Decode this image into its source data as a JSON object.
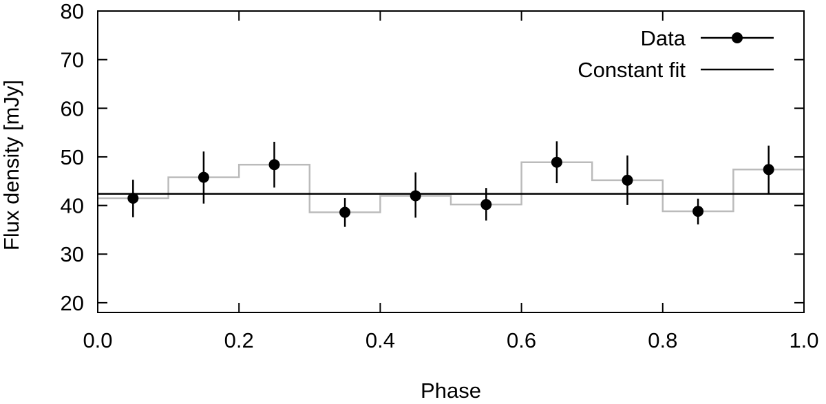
{
  "chart_data": {
    "type": "scatter",
    "title": "",
    "xlabel": "Phase",
    "ylabel": "Flux density [mJy]",
    "xlim": [
      0.0,
      1.0
    ],
    "ylim": [
      18,
      80
    ],
    "xticks": [
      0.0,
      0.2,
      0.4,
      0.6,
      0.8,
      1.0
    ],
    "xtick_labels": [
      "0.0",
      "0.2",
      "0.4",
      "0.6",
      "0.8",
      "1.0"
    ],
    "yticks": [
      20,
      30,
      40,
      50,
      60,
      70,
      80
    ],
    "ytick_labels": [
      "20",
      "30",
      "40",
      "50",
      "60",
      "70",
      "80"
    ],
    "grid": false,
    "legend": {
      "position": "top-right",
      "entries": [
        "Data",
        "Constant fit"
      ]
    },
    "series": [
      {
        "name": "Data",
        "style": "points-with-errorbars",
        "color": "#000000",
        "x": [
          0.05,
          0.15,
          0.25,
          0.35,
          0.45,
          0.55,
          0.65,
          0.75,
          0.85,
          0.95
        ],
        "y": [
          41.5,
          45.8,
          48.4,
          38.6,
          42.0,
          40.2,
          48.9,
          45.2,
          38.8,
          47.4
        ],
        "y_low": [
          37.6,
          40.4,
          43.7,
          35.6,
          37.5,
          36.9,
          44.6,
          40.1,
          36.1,
          42.5
        ],
        "y_high": [
          45.3,
          51.1,
          53.1,
          41.5,
          46.8,
          43.6,
          53.2,
          50.3,
          41.4,
          52.3
        ]
      },
      {
        "name": "Constant fit",
        "style": "line",
        "color": "#000000",
        "value": 42.4
      },
      {
        "name": "Model histogram",
        "style": "step",
        "color": "#bbbbbb",
        "bin_edges": [
          0.0,
          0.1,
          0.2,
          0.3,
          0.4,
          0.5,
          0.6,
          0.7,
          0.8,
          0.9,
          1.0
        ],
        "values": [
          41.5,
          45.8,
          48.4,
          38.6,
          42.0,
          40.2,
          48.9,
          45.2,
          38.8,
          47.4
        ]
      }
    ]
  }
}
